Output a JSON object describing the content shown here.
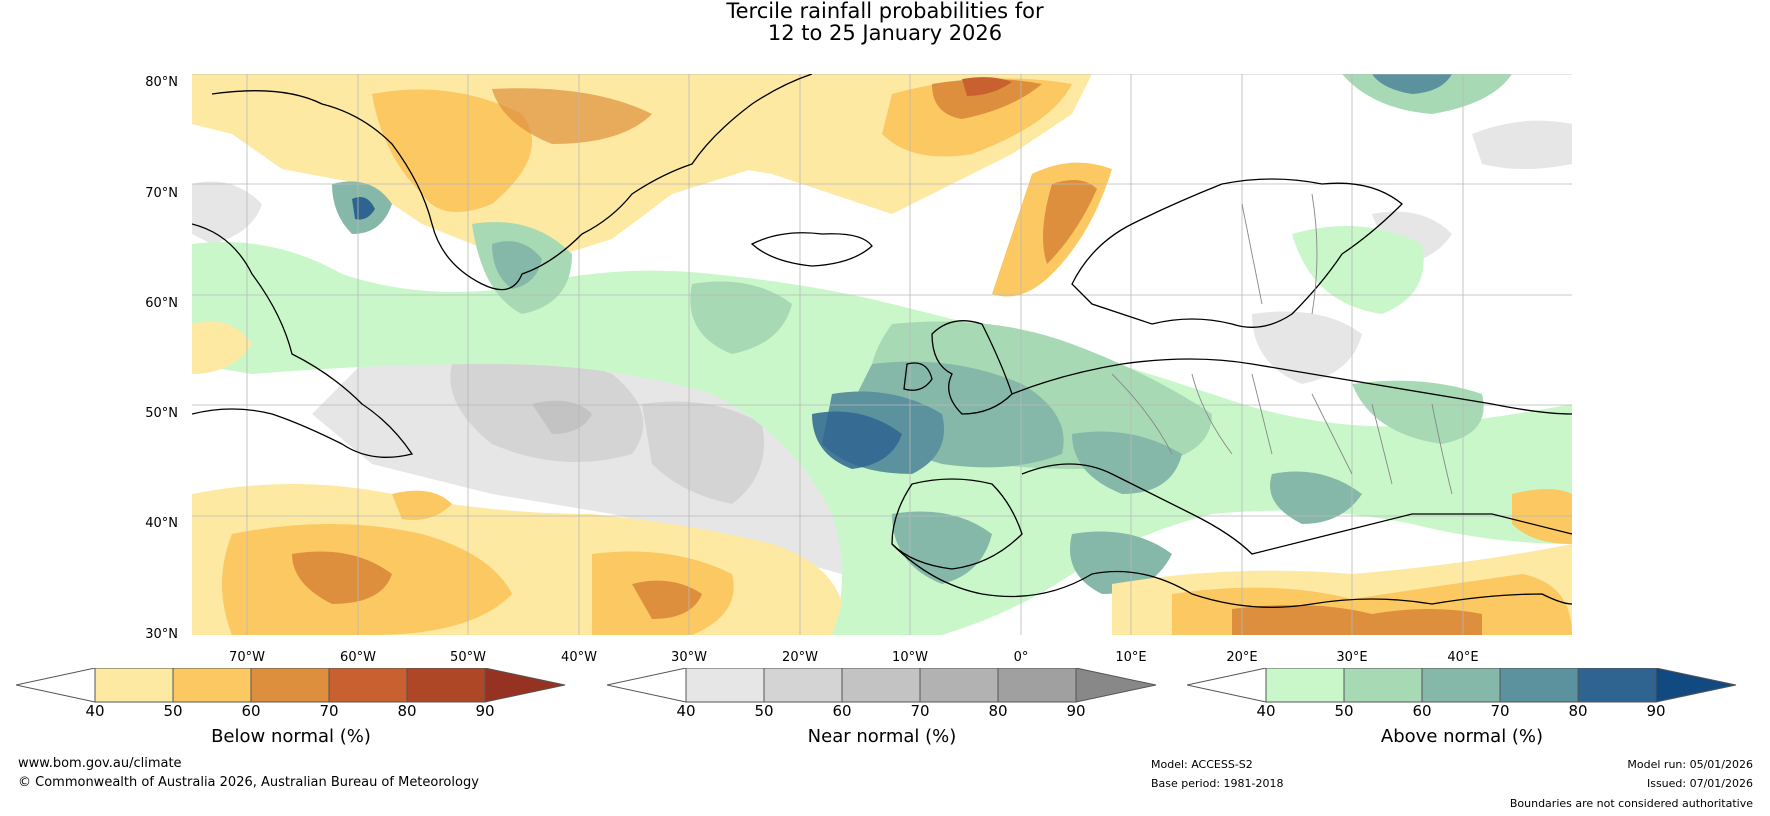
{
  "title": {
    "line1": "Tercile rainfall probabilities for",
    "line2": "12 to 25 January 2026"
  },
  "map": {
    "lat_labels": [
      "80°N",
      "70°N",
      "60°N",
      "50°N",
      "40°N",
      "30°N"
    ],
    "lon_labels": [
      "70°W",
      "60°W",
      "50°W",
      "40°W",
      "30°W",
      "20°W",
      "10°W",
      "0°",
      "10°E",
      "20°E",
      "30°E",
      "40°E"
    ],
    "region_names": [
      "greenland-region",
      "iceland-region",
      "scandinavia-region",
      "british-isles-region",
      "iberia-region",
      "north-africa-region",
      "newfoundland-region",
      "eastern-europe-region"
    ]
  },
  "colorbars": [
    {
      "label": "Below normal (%)",
      "ticks": [
        "40",
        "50",
        "60",
        "70",
        "80",
        "90"
      ],
      "colors": [
        "#ffffff",
        "#fde9a2",
        "#fbc862",
        "#de8f3d",
        "#c9602f",
        "#ae4726",
        "#963222"
      ]
    },
    {
      "label": "Near normal (%)",
      "ticks": [
        "40",
        "50",
        "60",
        "70",
        "80",
        "90"
      ],
      "colors": [
        "#ffffff",
        "#e6e6e6",
        "#d4d4d4",
        "#c3c3c3",
        "#b2b2b2",
        "#a0a0a0",
        "#888888"
      ]
    },
    {
      "label": "Above normal (%)",
      "ticks": [
        "40",
        "50",
        "60",
        "70",
        "80",
        "90"
      ],
      "colors": [
        "#ffffff",
        "#c9f7ca",
        "#a8d9b5",
        "#86b8a9",
        "#5c919e",
        "#2f6490",
        "#114a80"
      ]
    }
  ],
  "footer": {
    "website": "www.bom.gov.au/climate",
    "copyright": "© Commonwealth of Australia 2026, Australian Bureau of Meteorology",
    "model": "Model: ACCESS-S2",
    "base_period": "Base period: 1981-2018",
    "model_run": "Model run: 05/01/2026",
    "issued": "Issued: 07/01/2026",
    "disclaimer": "Boundaries are not considered authoritative"
  }
}
